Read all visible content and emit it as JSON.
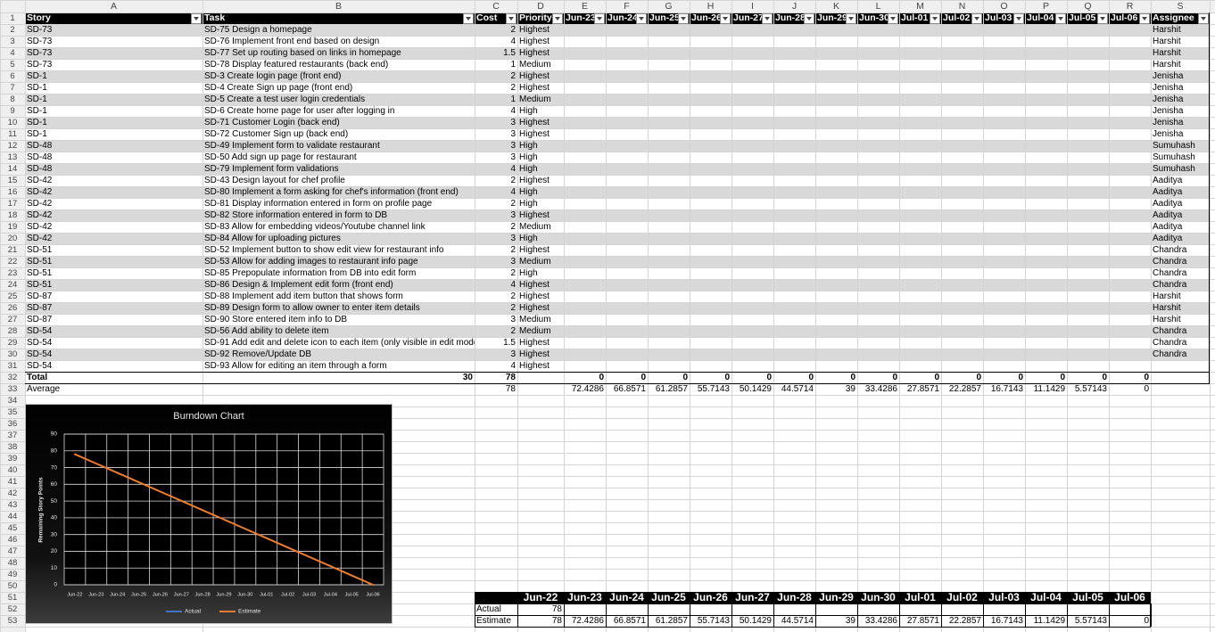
{
  "column_letters": [
    "A",
    "B",
    "C",
    "D",
    "E",
    "F",
    "G",
    "H",
    "I",
    "J",
    "K",
    "L",
    "M",
    "N",
    "O",
    "P",
    "Q",
    "R",
    "S"
  ],
  "row_numbers": [
    1,
    2,
    3,
    4,
    5,
    6,
    7,
    8,
    9,
    10,
    11,
    12,
    13,
    14,
    15,
    16,
    17,
    18,
    19,
    20,
    21,
    22,
    23,
    24,
    25,
    26,
    27,
    28,
    29,
    30,
    31,
    32,
    33,
    34,
    35,
    36,
    37,
    38,
    39,
    40,
    41,
    42,
    43,
    44,
    45,
    46,
    47,
    48,
    49,
    50,
    51,
    52,
    53
  ],
  "table": {
    "headers": [
      "Story",
      "Task",
      "Cost",
      "Priority",
      "Jun-23",
      "Jun-24",
      "Jun-25",
      "Jun-26",
      "Jun-27",
      "Jun-28",
      "Jun-29",
      "Jun-30",
      "Jul-01",
      "Jul-02",
      "Jul-03",
      "Jul-04",
      "Jul-05",
      "Jul-06",
      "Assignee"
    ],
    "rows": [
      [
        "SD-73",
        "SD-75 Design a homepage",
        2,
        "Highest",
        "Harshit"
      ],
      [
        "SD-73",
        "SD-76 Implement front end based on design",
        4,
        "Highest",
        "Harshit"
      ],
      [
        "SD-73",
        "SD-77 Set up routing based on links in homepage",
        1.5,
        "Highest",
        "Harshit"
      ],
      [
        "SD-73",
        "SD-78 Display featured restaurants (back end)",
        1,
        "Medium",
        "Harshit"
      ],
      [
        "SD-1",
        "SD-3 Create login page (front end)",
        2,
        "Highest",
        "Jenisha"
      ],
      [
        "SD-1",
        "SD-4 Create Sign up page (front end)",
        2,
        "Highest",
        "Jenisha"
      ],
      [
        "SD-1",
        "SD-5 Create a test user login credentials",
        1,
        "Medium",
        "Jenisha"
      ],
      [
        "SD-1",
        "SD-6 Create home page for user after logging in",
        4,
        "High",
        "Jenisha"
      ],
      [
        "SD-1",
        "SD-71 Customer Login (back end)",
        3,
        "Highest",
        "Jenisha"
      ],
      [
        "SD-1",
        "SD-72 Customer Sign up (back end)",
        3,
        "Highest",
        "Jenisha"
      ],
      [
        "SD-48",
        "SD-49 Implement form to validate restaurant",
        3,
        "High",
        "Sumuhash"
      ],
      [
        "SD-48",
        "SD-50 Add sign up page for restaurant",
        3,
        "High",
        "Sumuhash"
      ],
      [
        "SD-48",
        "SD-79 Implement form validations",
        4,
        "High",
        "Sumuhash"
      ],
      [
        "SD-42",
        "SD-43 Design layout for chef profile",
        2,
        "Highest",
        "Aaditya"
      ],
      [
        "SD-42",
        "SD-80 Implement a form asking for chef's information (front end)",
        4,
        "High",
        "Aaditya"
      ],
      [
        "SD-42",
        "SD-81 Display information entered in form on profile page",
        2,
        "High",
        "Aaditya"
      ],
      [
        "SD-42",
        "SD-82 Store information entered in form to DB",
        3,
        "Highest",
        "Aaditya"
      ],
      [
        "SD-42",
        "SD-83 Allow for embedding videos/Youtube channel link",
        2,
        "Medium",
        "Aaditya"
      ],
      [
        "SD-42",
        "SD-84 Allow for uploading pictures",
        3,
        "High",
        "Aaditya"
      ],
      [
        "SD-51",
        "SD-52 Implement button to show edit view for restaurant info",
        2,
        "Highest",
        "Chandra"
      ],
      [
        "SD-51",
        "SD-53 Allow for adding images to restaurant info page",
        3,
        "Medium",
        "Chandra"
      ],
      [
        "SD-51",
        "SD-85 Prepopulate information from DB into edit form",
        2,
        "High",
        "Chandra"
      ],
      [
        "SD-51",
        "SD-86 Design & Implement edit form (front end)",
        4,
        "Highest",
        "Chandra"
      ],
      [
        "SD-87",
        "SD-88 Implement add item button that shows form",
        2,
        "Highest",
        "Harshit"
      ],
      [
        "SD-87",
        "SD-89 Design form to allow owner to enter item details",
        2,
        "Highest",
        "Harshit"
      ],
      [
        "SD-87",
        "SD-90 Store entered item info to DB",
        3,
        "Medium",
        "Harshit"
      ],
      [
        "SD-54",
        "SD-56 Add ability to delete item",
        2,
        "Medium",
        "Chandra"
      ],
      [
        "SD-54",
        "SD-91 Add edit and delete icon to each item (only visible in edit mode)",
        1.5,
        "Highest",
        "Chandra"
      ],
      [
        "SD-54",
        "SD-92 Remove/Update DB",
        3,
        "Highest",
        "Chandra"
      ],
      [
        "SD-54",
        "SD-93 Allow for editing an item through a form",
        4,
        "Highest"
      ]
    ]
  },
  "total": {
    "label": "Total",
    "task": 30,
    "cost": 78,
    "days": [
      0,
      0,
      0,
      0,
      0,
      0,
      0,
      0,
      0,
      0,
      0,
      0,
      0,
      0
    ]
  },
  "average": {
    "label": "Average",
    "cost": 78,
    "days": [
      72.4286,
      66.8571,
      61.2857,
      55.7143,
      50.1429,
      44.5714,
      39,
      33.4286,
      27.8571,
      22.2857,
      16.7143,
      11.1429,
      5.57143,
      0
    ]
  },
  "chart_data": {
    "type": "line",
    "title": "Burndown Chart",
    "y_label": "Remaining Story Points",
    "categories": [
      "Jun-22",
      "Jun-23",
      "Jun-24",
      "Jun-25",
      "Jun-26",
      "Jun-27",
      "Jun-28",
      "Jun-29",
      "Jun-30",
      "Jul-01",
      "Jul-02",
      "Jul-03",
      "Jul-04",
      "Jul-05",
      "Jul-06"
    ],
    "series": [
      {
        "name": "Actual",
        "color": "#4472c4",
        "values": [
          78,
          null,
          null,
          null,
          null,
          null,
          null,
          null,
          null,
          null,
          null,
          null,
          null,
          null,
          null
        ]
      },
      {
        "name": "Estimate",
        "color": "#ed7d31",
        "values": [
          78,
          72.4286,
          66.8571,
          61.2857,
          55.7143,
          50.1429,
          44.5714,
          39,
          33.4286,
          27.8571,
          22.2857,
          16.7143,
          11.1429,
          5.57143,
          0
        ]
      }
    ],
    "ylim": [
      0,
      90
    ],
    "yticks": [
      0,
      10,
      20,
      30,
      40,
      50,
      60,
      70,
      80,
      90
    ],
    "grid": true,
    "legend": "bottom"
  },
  "summary": {
    "dates": [
      "Jun-22",
      "Jun-23",
      "Jun-24",
      "Jun-25",
      "Jun-26",
      "Jun-27",
      "Jun-28",
      "Jun-29",
      "Jun-30",
      "Jul-01",
      "Jul-02",
      "Jul-03",
      "Jul-04",
      "Jul-05",
      "Jul-06"
    ],
    "rows": [
      {
        "label": "Actual",
        "values": [
          78
        ]
      },
      {
        "label": "Estimate",
        "values": [
          78,
          72.4286,
          66.8571,
          61.2857,
          55.7143,
          50.1429,
          44.5714,
          39,
          33.4286,
          27.8571,
          22.2857,
          16.7143,
          11.1429,
          5.57143,
          0
        ]
      }
    ]
  }
}
